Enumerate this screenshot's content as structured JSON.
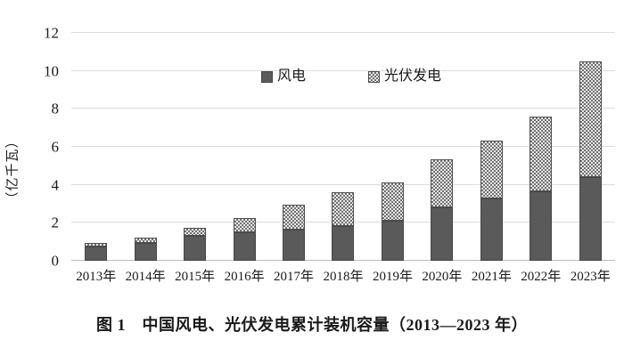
{
  "figure": {
    "caption": "图 1　中国风电、光伏发电累计装机容量（2013—2023 年）"
  },
  "chart_data": {
    "type": "bar",
    "stacked": true,
    "caption": "图 1　中国风电、光伏发电累计装机容量（2013—2023 年）",
    "ylabel": "（亿千瓦）",
    "xlabel": "",
    "categories": [
      "2013年",
      "2014年",
      "2015年",
      "2016年",
      "2017年",
      "2018年",
      "2019年",
      "2020年",
      "2021年",
      "2022年",
      "2023年"
    ],
    "series": [
      {
        "name": "风电",
        "pattern": "solid",
        "color": "#5a5a5a",
        "values": [
          0.77,
          0.96,
          1.31,
          1.49,
          1.64,
          1.84,
          2.1,
          2.82,
          3.28,
          3.65,
          4.41
        ]
      },
      {
        "name": "光伏发电",
        "pattern": "checker",
        "color": "#e9e9e9",
        "dot_color": "#707070",
        "values": [
          0.19,
          0.28,
          0.43,
          0.78,
          1.3,
          1.75,
          2.04,
          2.53,
          3.06,
          3.93,
          6.09
        ]
      }
    ],
    "totals": [
      0.96,
      1.24,
      1.74,
      2.27,
      2.94,
      3.59,
      4.14,
      5.35,
      6.34,
      7.58,
      10.5
    ],
    "ylim": [
      0,
      12
    ],
    "yticks": [
      0,
      2,
      4,
      6,
      8,
      10,
      12
    ],
    "grid": true,
    "legend_position": "top-center"
  },
  "colors": {
    "background": "#ffffff",
    "gridline": "#dcdcdc",
    "baseline": "#bdbdbd",
    "text": "#1a1a1a",
    "wind_bar": "#5a5a5a",
    "pv_light": "#e9e9e9",
    "pv_dot": "#707070"
  }
}
